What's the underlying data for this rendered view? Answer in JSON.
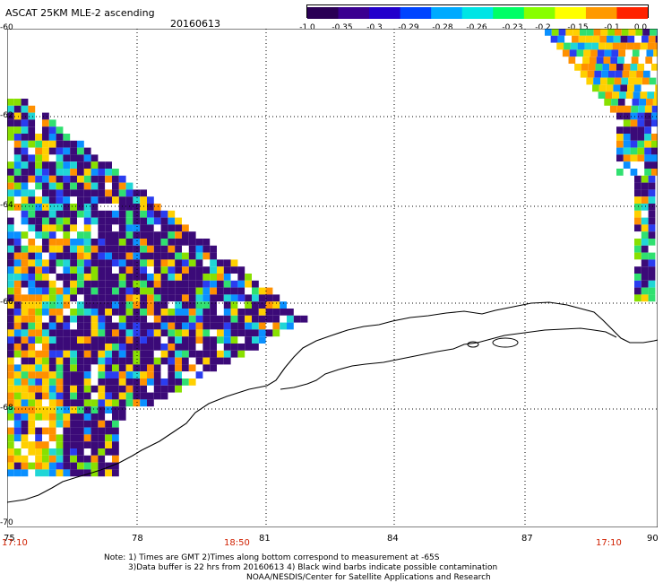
{
  "header": {
    "title": "ASCAT 25KM MLE-2 ascending",
    "date": "20160613"
  },
  "colorbar": {
    "tick_labels": [
      "-1.0",
      "-0.35",
      "-0.3",
      "-0.29",
      "-0.28",
      "-0.26",
      "-0.23",
      "-0.2",
      "-0.15",
      "-0.1",
      "0.0"
    ],
    "colors": [
      "#2a0055",
      "#3a0090",
      "#2200cc",
      "#0044ff",
      "#00aaff",
      "#00e5e5",
      "#00ff66",
      "#88ff00",
      "#ffff00",
      "#ff9900",
      "#ff2200"
    ]
  },
  "map": {
    "lon_labels": [
      "75",
      "78",
      "81",
      "84",
      "87",
      "90"
    ],
    "lat_labels": [
      "-60",
      "-62",
      "-64",
      "-66",
      "-68",
      "-70"
    ],
    "time_labels": [
      "17:10",
      "18:50",
      "17:10"
    ],
    "coastline_color": "#000000",
    "grid_style": "dotted",
    "swath_colors": [
      "#3b0a78",
      "#2a3df0",
      "#0a90ff",
      "#20d6d6",
      "#30e070",
      "#88e000",
      "#ffd000",
      "#ff9000",
      "#ffffff"
    ]
  },
  "footer": {
    "note_line1": "Note: 1) Times are GMT 2)Times along bottom correspond to measurement at -65S",
    "note_line2": "3)Data buffer is 22 hrs from 20160613 4) Black wind barbs indicate possible contamination",
    "credit": "NOAA/NESDIS/Center for Satellite Applications and Research"
  }
}
